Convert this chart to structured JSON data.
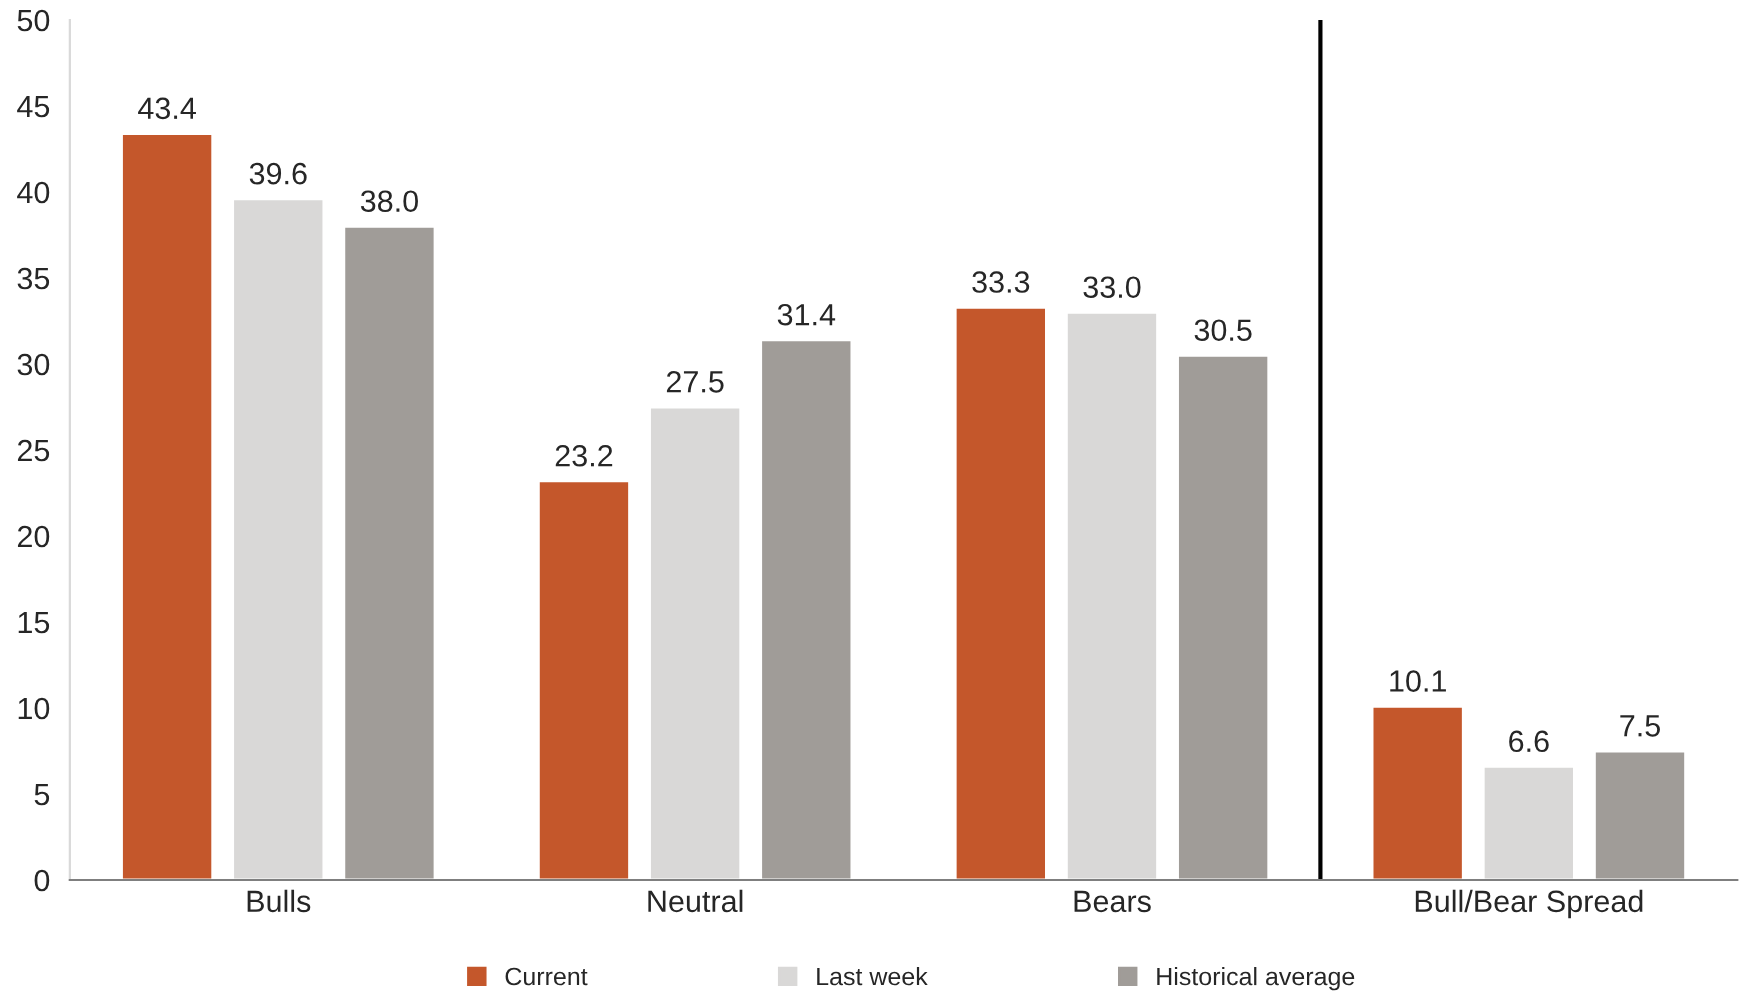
{
  "chart_data": {
    "type": "bar",
    "categories": [
      "Bulls",
      "Neutral",
      "Bears",
      "Bull/Bear Spread"
    ],
    "series": [
      {
        "name": "Current",
        "color": "#c4572b",
        "values": [
          43.4,
          23.2,
          33.3,
          10.1
        ],
        "value_labels": [
          "43.4",
          "23.2",
          "33.3",
          "10.1"
        ]
      },
      {
        "name": "Last week",
        "color": "#d9d8d7",
        "values": [
          39.6,
          27.5,
          33.0,
          6.6
        ],
        "value_labels": [
          "39.6",
          "27.5",
          "33.0",
          "6.6"
        ]
      },
      {
        "name": "Historical average",
        "color": "#a09c98",
        "values": [
          38.0,
          31.4,
          30.5,
          7.5
        ],
        "value_labels": [
          "38.0",
          "31.4",
          "30.5",
          "7.5"
        ]
      }
    ],
    "ylim": [
      0,
      50
    ],
    "yticks": [
      0,
      5,
      10,
      15,
      20,
      25,
      30,
      35,
      40,
      45,
      50
    ],
    "grid": false,
    "legend": "bottom"
  }
}
